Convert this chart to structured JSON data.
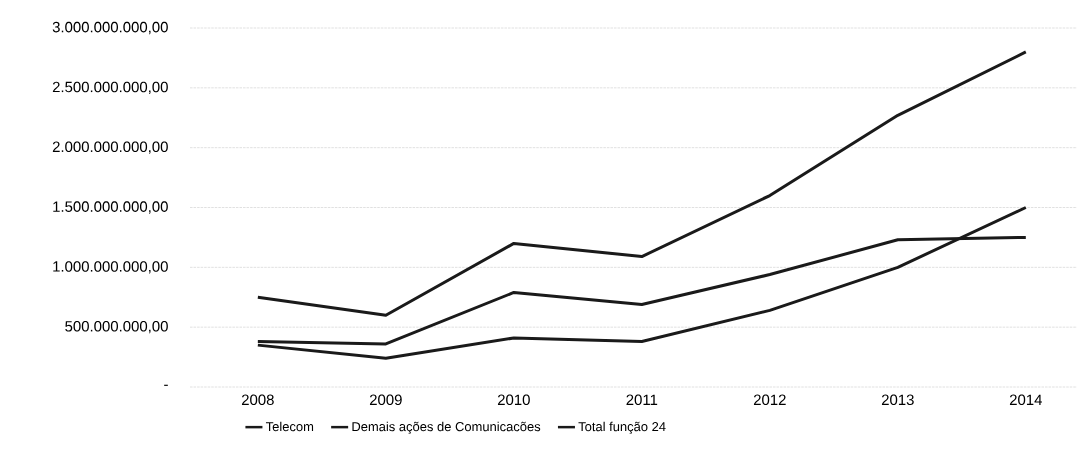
{
  "chart_data": {
    "type": "line",
    "categories": [
      "2008",
      "2009",
      "2010",
      "2011",
      "2012",
      "2013",
      "2014"
    ],
    "series": [
      {
        "name": "Telecom",
        "color": "#1a1a1a",
        "values": [
          350000000,
          240000000,
          410000000,
          380000000,
          640000000,
          1000000000,
          1500000000
        ]
      },
      {
        "name": "Demais ações de Comunicacões",
        "color": "#1a1a1a",
        "values": [
          380000000,
          360000000,
          790000000,
          690000000,
          940000000,
          1230000000,
          1250000000
        ]
      },
      {
        "name": "Total função 24",
        "color": "#1a1a1a",
        "values": [
          750000000,
          600000000,
          1200000000,
          1090000000,
          1600000000,
          2270000000,
          2800000000
        ]
      }
    ],
    "ylim": [
      0,
      3000000000
    ],
    "yticks": [
      {
        "value": 0,
        "label": "-"
      },
      {
        "value": 500000000,
        "label": "500.000.000,00"
      },
      {
        "value": 1000000000,
        "label": "1.000.000.000,00"
      },
      {
        "value": 1500000000,
        "label": "1.500.000.000,00"
      },
      {
        "value": 2000000000,
        "label": "2.000.000.000,00"
      },
      {
        "value": 2500000000,
        "label": "2.500.000.000,00"
      },
      {
        "value": 3000000000,
        "label": "3.000.000.000,00"
      }
    ],
    "grid": "y",
    "legend": "bottom",
    "marker": "none",
    "line_style": "solid"
  }
}
